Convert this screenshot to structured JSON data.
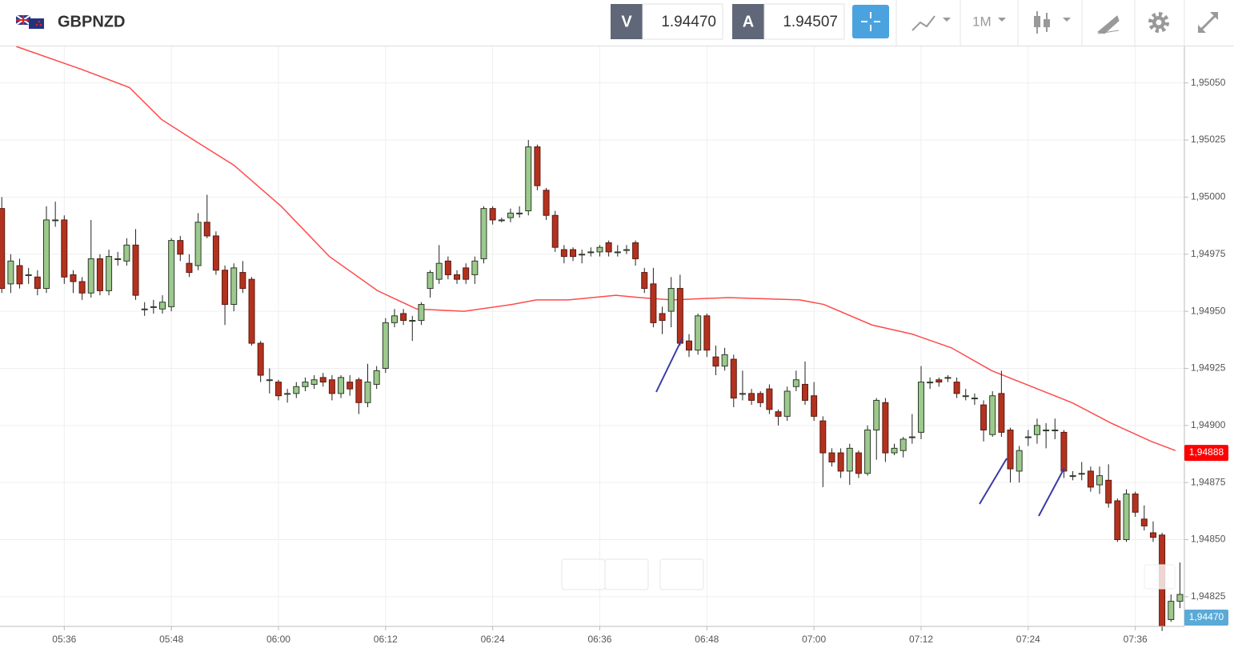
{
  "header": {
    "symbol": "GBPNZD",
    "bid_label": "V",
    "bid": "1.94470",
    "ask_label": "A",
    "ask": "1.94507",
    "timeframe": "1M"
  },
  "chart_data": {
    "type": "candlestick",
    "x": [
      329,
      330,
      331,
      332,
      333,
      334,
      335,
      336,
      337,
      338,
      339,
      340,
      341,
      342,
      343,
      344,
      345,
      346,
      347,
      348,
      349,
      350,
      351,
      352,
      353,
      354,
      355,
      356,
      357,
      358,
      359,
      360,
      361,
      362,
      363,
      364,
      365,
      366,
      367,
      368,
      369,
      370,
      371,
      372,
      373,
      374,
      375,
      376,
      377,
      378,
      379,
      380,
      381,
      382,
      383,
      384,
      385,
      386,
      387,
      388,
      389,
      390,
      391,
      392,
      393,
      394,
      395,
      396,
      397,
      398,
      399,
      400,
      401,
      402,
      403,
      404,
      405,
      406,
      407,
      408,
      409,
      410,
      411,
      412,
      413,
      414,
      415,
      416,
      417,
      418,
      419,
      420,
      421,
      422,
      423,
      424,
      425,
      426,
      427,
      428,
      429,
      430,
      431,
      432,
      433,
      434,
      435,
      436,
      437,
      438,
      439,
      440,
      441,
      442,
      443,
      444,
      445,
      446,
      447,
      448,
      449,
      450,
      451,
      452,
      453,
      454,
      455,
      456,
      457,
      458,
      459,
      460,
      461
    ],
    "open": [
      1.94995,
      1.94962,
      1.9497,
      1.94966,
      1.94965,
      1.9496,
      1.9499,
      1.9499,
      1.94966,
      1.94963,
      1.94958,
      1.94973,
      1.94959,
      1.94973,
      1.94972,
      1.94979,
      1.94951,
      1.94952,
      1.94951,
      1.94952,
      1.94981,
      1.94971,
      1.9497,
      1.94989,
      1.94983,
      1.94968,
      1.94953,
      1.94967,
      1.94964,
      1.94936,
      1.9492,
      1.94919,
      1.94914,
      1.94914,
      1.94917,
      1.94918,
      1.94921,
      1.9492,
      1.94914,
      1.94919,
      1.9492,
      1.9491,
      1.94918,
      1.94925,
      1.94945,
      1.94949,
      1.94946,
      1.94946,
      1.9496,
      1.94964,
      1.94972,
      1.94966,
      1.94969,
      1.94966,
      1.94973,
      1.94995,
      1.9499,
      1.94991,
      1.94993,
      1.94994,
      1.95022,
      1.95003,
      1.94992,
      1.94977,
      1.94977,
      1.94975,
      1.94976,
      1.94976,
      1.9498,
      1.94976,
      1.94977,
      1.9498,
      1.94967,
      1.94962,
      1.94949,
      1.9495,
      1.9496,
      1.94937,
      1.94933,
      1.94948,
      1.9493,
      1.94926,
      1.94929,
      1.94914,
      1.94914,
      1.94914,
      1.94916,
      1.94906,
      1.94904,
      1.94917,
      1.94918,
      1.94913,
      1.94902,
      1.94888,
      1.94888,
      1.9488,
      1.94888,
      1.94879,
      1.94898,
      1.9491,
      1.94888,
      1.94889,
      1.94895,
      1.94897,
      1.94919,
      1.9492,
      1.94921,
      1.94919,
      1.94913,
      1.94912,
      1.94909,
      1.94896,
      1.94914,
      1.94898,
      1.9488,
      1.94895,
      1.94896,
      1.94898,
      1.94898,
      1.94897,
      1.94878,
      1.94879,
      1.9488,
      1.94874,
      1.94876,
      1.94867,
      1.9485,
      1.9487,
      1.94859,
      1.94853,
      1.94852,
      1.94815,
      1.94823
    ],
    "high": [
      1.95,
      1.94975,
      1.94973,
      1.94969,
      1.94968,
      1.94996,
      1.94998,
      1.94992,
      1.94968,
      1.94965,
      1.9499,
      1.94975,
      1.94977,
      1.94976,
      1.94982,
      1.94986,
      1.94954,
      1.94955,
      1.94957,
      1.94982,
      1.94983,
      1.94975,
      1.94993,
      1.95001,
      1.94985,
      1.9497,
      1.94971,
      1.94972,
      1.94965,
      1.94937,
      1.94925,
      1.9492,
      1.94916,
      1.94919,
      1.94921,
      1.94922,
      1.94923,
      1.94922,
      1.94922,
      1.94922,
      1.94921,
      1.94927,
      1.94926,
      1.94947,
      1.94951,
      1.94951,
      1.94948,
      1.94954,
      1.94968,
      1.94979,
      1.94974,
      1.94968,
      1.94971,
      1.94974,
      1.94996,
      1.94996,
      1.94991,
      1.94995,
      1.94996,
      1.95025,
      1.95023,
      1.95004,
      1.94994,
      1.94979,
      1.94978,
      1.94977,
      1.94978,
      1.94979,
      1.94981,
      1.94979,
      1.94979,
      1.94981,
      1.94969,
      1.94969,
      1.94952,
      1.94965,
      1.94966,
      1.9494,
      1.94949,
      1.94949,
      1.94935,
      1.94934,
      1.94931,
      1.94924,
      1.94916,
      1.94915,
      1.94918,
      1.94907,
      1.94917,
      1.94924,
      1.94928,
      1.94919,
      1.94904,
      1.9489,
      1.9489,
      1.94892,
      1.94889,
      1.949,
      1.94912,
      1.94912,
      1.94892,
      1.94895,
      1.94905,
      1.94926,
      1.94921,
      1.94921,
      1.94922,
      1.94921,
      1.94916,
      1.94914,
      1.94911,
      1.94915,
      1.94924,
      1.94899,
      1.94891,
      1.94898,
      1.94903,
      1.94901,
      1.94903,
      1.94898,
      1.9488,
      1.94884,
      1.94882,
      1.94882,
      1.94883,
      1.94868,
      1.94872,
      1.94871,
      1.94865,
      1.94858,
      1.94853,
      1.94826,
      1.9484
    ],
    "low": [
      1.94958,
      1.94958,
      1.9496,
      1.94962,
      1.94957,
      1.94958,
      1.94987,
      1.94962,
      1.94958,
      1.94955,
      1.94956,
      1.94957,
      1.94957,
      1.9497,
      1.9497,
      1.94955,
      1.94948,
      1.94949,
      1.94949,
      1.9495,
      1.94972,
      1.94965,
      1.94968,
      1.94982,
      1.94966,
      1.94944,
      1.9495,
      1.94958,
      1.94935,
      1.94919,
      1.94914,
      1.94911,
      1.9491,
      1.94912,
      1.94915,
      1.94916,
      1.94917,
      1.94911,
      1.94912,
      1.94913,
      1.94905,
      1.94908,
      1.94916,
      1.94923,
      1.94943,
      1.94944,
      1.94937,
      1.94944,
      1.94956,
      1.94962,
      1.94964,
      1.94962,
      1.94962,
      1.94962,
      1.94971,
      1.94988,
      1.94989,
      1.94989,
      1.94991,
      1.94992,
      1.95003,
      1.9499,
      1.94976,
      1.94971,
      1.94972,
      1.94971,
      1.94974,
      1.94974,
      1.94974,
      1.94974,
      1.94975,
      1.9497,
      1.94958,
      1.94943,
      1.9494,
      1.94943,
      1.94935,
      1.9493,
      1.94931,
      1.9493,
      1.94922,
      1.94924,
      1.94908,
      1.94911,
      1.94909,
      1.94908,
      1.94905,
      1.949,
      1.94902,
      1.94915,
      1.94909,
      1.94902,
      1.94873,
      1.94882,
      1.94877,
      1.94874,
      1.94877,
      1.94878,
      1.94885,
      1.94884,
      1.94887,
      1.94886,
      1.94892,
      1.94894,
      1.94916,
      1.94917,
      1.94919,
      1.94912,
      1.94911,
      1.94909,
      1.94893,
      1.94895,
      1.94895,
      1.94875,
      1.94875,
      1.94891,
      1.94892,
      1.9489,
      1.94894,
      1.94877,
      1.94876,
      1.94876,
      1.94871,
      1.9487,
      1.94864,
      1.94849,
      1.94849,
      1.9486,
      1.94854,
      1.94849,
      1.9481,
      1.94814,
      1.9482
    ],
    "close": [
      1.9496,
      1.94972,
      1.94962,
      1.94966,
      1.9496,
      1.9499,
      1.9499,
      1.94965,
      1.94963,
      1.94958,
      1.94973,
      1.94959,
      1.94974,
      1.94973,
      1.94979,
      1.94957,
      1.94951,
      1.94952,
      1.94954,
      1.94981,
      1.94975,
      1.94967,
      1.94989,
      1.94983,
      1.94968,
      1.94953,
      1.94969,
      1.9496,
      1.94936,
      1.94922,
      1.9492,
      1.94913,
      1.94914,
      1.94917,
      1.94919,
      1.9492,
      1.94919,
      1.94914,
      1.94921,
      1.94916,
      1.9491,
      1.94919,
      1.94924,
      1.94945,
      1.94948,
      1.94946,
      1.94946,
      1.94953,
      1.94967,
      1.94971,
      1.94966,
      1.94964,
      1.94964,
      1.94972,
      1.94995,
      1.9499,
      1.9499,
      1.94993,
      1.94993,
      1.95022,
      1.95005,
      1.94992,
      1.94978,
      1.94974,
      1.94974,
      1.94975,
      1.94976,
      1.94978,
      1.94976,
      1.94976,
      1.94977,
      1.94973,
      1.9496,
      1.94945,
      1.94946,
      1.9496,
      1.94936,
      1.94933,
      1.94948,
      1.94933,
      1.94926,
      1.94931,
      1.94912,
      1.94914,
      1.94911,
      1.9491,
      1.94907,
      1.94904,
      1.94915,
      1.9492,
      1.94911,
      1.94904,
      1.94888,
      1.94884,
      1.9488,
      1.9489,
      1.94879,
      1.94898,
      1.94911,
      1.94888,
      1.9489,
      1.94894,
      1.94895,
      1.94919,
      1.94919,
      1.94919,
      1.94921,
      1.94914,
      1.94913,
      1.94912,
      1.94898,
      1.94913,
      1.94897,
      1.94881,
      1.94889,
      1.94895,
      1.949,
      1.94898,
      1.94898,
      1.9488,
      1.94878,
      1.94879,
      1.94873,
      1.94878,
      1.94866,
      1.9485,
      1.9487,
      1.94862,
      1.94856,
      1.94851,
      1.94812,
      1.94823,
      1.94826
    ],
    "up_color": "#9cc98c",
    "down_color": "#b3321f",
    "xlim": [
      328.8,
      461.5
    ],
    "ylim": [
      1.94812,
      1.95066
    ],
    "xticks": [
      {
        "value": 336,
        "label": "05:36"
      },
      {
        "value": 348,
        "label": "05:48"
      },
      {
        "value": 360,
        "label": "06:00"
      },
      {
        "value": 372,
        "label": "06:12"
      },
      {
        "value": 384,
        "label": "06:24"
      },
      {
        "value": 396,
        "label": "06:36"
      },
      {
        "value": 408,
        "label": "06:48"
      },
      {
        "value": 420,
        "label": "07:00"
      },
      {
        "value": 432,
        "label": "07:12"
      },
      {
        "value": 444,
        "label": "07:24"
      },
      {
        "value": 456,
        "label": "07:36"
      }
    ],
    "yticks": [
      {
        "value": 1.94825,
        "label": "1,94825"
      },
      {
        "value": 1.9485,
        "label": "1,94850"
      },
      {
        "value": 1.94875,
        "label": "1,94875"
      },
      {
        "value": 1.949,
        "label": "1,94900"
      },
      {
        "value": 1.94925,
        "label": "1,94925"
      },
      {
        "value": 1.9495,
        "label": "1,94950"
      },
      {
        "value": 1.94975,
        "label": "1,94975"
      },
      {
        "value": 1.95,
        "label": "1,95000"
      },
      {
        "value": 1.95025,
        "label": "1,95025"
      },
      {
        "value": 1.9505,
        "label": "1,95050"
      }
    ],
    "grid": true,
    "moving_average": {
      "color": "#ff4a4a",
      "x": [
        330.6,
        337.9,
        343.3,
        346.9,
        350.5,
        355,
        360.3,
        365.7,
        371.1,
        375.5,
        380.8,
        386.2,
        388.9,
        392.5,
        397.8,
        400.5,
        404.1,
        410.4,
        418.4,
        421.1,
        426.5,
        431,
        435.4,
        439.9,
        444.4,
        448.9,
        453.3,
        457.8,
        460.5
      ],
      "values": [
        1.95066,
        1.95056,
        1.95048,
        1.95034,
        1.95025,
        1.95014,
        1.94996,
        1.94974,
        1.94959,
        1.94951,
        1.9495,
        1.94953,
        1.94955,
        1.94955,
        1.94957,
        1.94956,
        1.94955,
        1.94956,
        1.94955,
        1.94953,
        1.94944,
        1.9494,
        1.94934,
        1.94924,
        1.94917,
        1.9491,
        1.94901,
        1.94893,
        1.94889
      ]
    },
    "price_tags": [
      {
        "value": 1.94888,
        "label": "1,94888",
        "color": "#ff0000"
      },
      {
        "label": "1,94470",
        "color": "#5aaad8"
      }
    ]
  }
}
